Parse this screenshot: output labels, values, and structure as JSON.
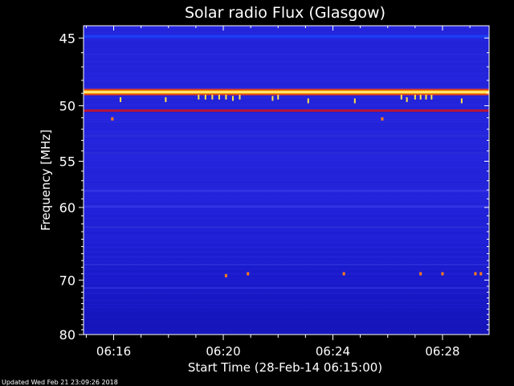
{
  "chart_data": {
    "type": "heatmap",
    "title": "Solar radio Flux (Glasgow)",
    "xlabel": "Start Time (28-Feb-14 06:15:00)",
    "ylabel": "Frequency [MHz]",
    "footer": "Updated Wed Feb 21 23:09:26 2018",
    "x_tick_labels": [
      "06:16",
      "06:20",
      "06:24",
      "06:28"
    ],
    "x_tick_values_min": [
      1,
      5,
      9,
      13
    ],
    "xlim_min": [
      -0.1,
      14.7
    ],
    "y_tick_labels": [
      "45",
      "50",
      "55",
      "60",
      "70",
      "80"
    ],
    "y_tick_values": [
      45,
      50,
      55,
      60,
      70,
      80
    ],
    "ylim": [
      44.2,
      80
    ],
    "y_scale": "inverted-reciprocal",
    "bands": [
      {
        "freq": 44.9,
        "level": "high",
        "color": "#1b3cf2"
      },
      {
        "freq": 48.9,
        "level": "saturated",
        "color": "#ffd21a"
      },
      {
        "freq": 50.4,
        "level": "elevated",
        "color": "#b4153c"
      },
      {
        "freq": 52.6,
        "level": "medium",
        "color": "#2a2ed8"
      },
      {
        "freq": 54.2,
        "level": "medium",
        "color": "#2a2ed8"
      },
      {
        "freq": 58.1,
        "level": "elevated",
        "color": "#3433e4"
      },
      {
        "freq": 59.9,
        "level": "elevated",
        "color": "#3433e4"
      },
      {
        "freq": 62.4,
        "level": "medium",
        "color": "#2a2ed8"
      },
      {
        "freq": 67.6,
        "level": "medium",
        "color": "#2a2ed8"
      },
      {
        "freq": 71.3,
        "level": "medium",
        "color": "#2a2ed8"
      }
    ],
    "bursts": [
      {
        "t_min": 1.25,
        "freq": 49.5
      },
      {
        "t_min": 2.9,
        "freq": 49.5
      },
      {
        "t_min": 4.1,
        "freq": 49.3
      },
      {
        "t_min": 4.35,
        "freq": 49.3
      },
      {
        "t_min": 4.6,
        "freq": 49.3
      },
      {
        "t_min": 4.85,
        "freq": 49.3
      },
      {
        "t_min": 5.1,
        "freq": 49.3
      },
      {
        "t_min": 5.35,
        "freq": 49.4
      },
      {
        "t_min": 5.6,
        "freq": 49.3
      },
      {
        "t_min": 6.8,
        "freq": 49.4
      },
      {
        "t_min": 7.0,
        "freq": 49.3
      },
      {
        "t_min": 8.1,
        "freq": 49.6
      },
      {
        "t_min": 9.8,
        "freq": 49.6
      },
      {
        "t_min": 11.5,
        "freq": 49.3
      },
      {
        "t_min": 11.7,
        "freq": 49.5
      },
      {
        "t_min": 12.0,
        "freq": 49.3
      },
      {
        "t_min": 12.2,
        "freq": 49.3
      },
      {
        "t_min": 12.4,
        "freq": 49.3
      },
      {
        "t_min": 12.6,
        "freq": 49.3
      },
      {
        "t_min": 13.7,
        "freq": 49.6
      }
    ],
    "spots": [
      {
        "t_min": 0.95,
        "freq": 51.1
      },
      {
        "t_min": 10.8,
        "freq": 51.1
      },
      {
        "t_min": 5.1,
        "freq": 69.3
      },
      {
        "t_min": 5.9,
        "freq": 69.0
      },
      {
        "t_min": 9.4,
        "freq": 69.0
      },
      {
        "t_min": 12.2,
        "freq": 69.0
      },
      {
        "t_min": 13.0,
        "freq": 69.0
      },
      {
        "t_min": 14.2,
        "freq": 69.0
      },
      {
        "t_min": 14.4,
        "freq": 69.0
      }
    ],
    "grid": false,
    "colormap": "black-blue-red-yellow-white"
  }
}
